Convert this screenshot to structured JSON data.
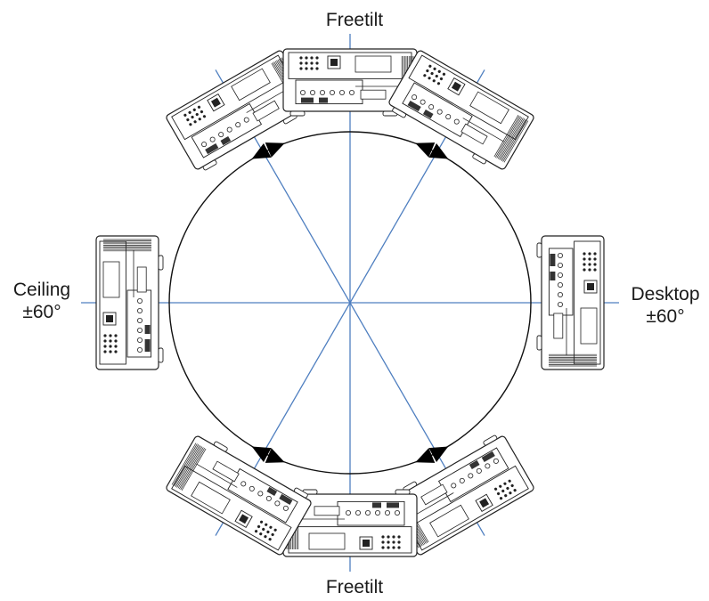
{
  "labels": {
    "top": "Freetilt",
    "bottom": "Freetilt",
    "left_line1": "Ceiling",
    "left_line2": "±60°",
    "right_line1": "Desktop",
    "right_line2": "±60°"
  },
  "colors": {
    "axis": "#4f7fc0",
    "circle": "#111111",
    "arrow": "#000000",
    "device_stroke": "#222222",
    "background": "#ffffff"
  },
  "orientations": [
    {
      "id": "ceiling",
      "angle_deg": 180
    },
    {
      "id": "freetilt-upper-left",
      "angle_deg": 120
    },
    {
      "id": "freetilt-top",
      "angle_deg": 90
    },
    {
      "id": "freetilt-upper-right",
      "angle_deg": 60
    },
    {
      "id": "desktop",
      "angle_deg": 0
    },
    {
      "id": "freetilt-lower-right",
      "angle_deg": -60
    },
    {
      "id": "freetilt-bottom",
      "angle_deg": -90
    },
    {
      "id": "freetilt-lower-left",
      "angle_deg": -120
    }
  ]
}
